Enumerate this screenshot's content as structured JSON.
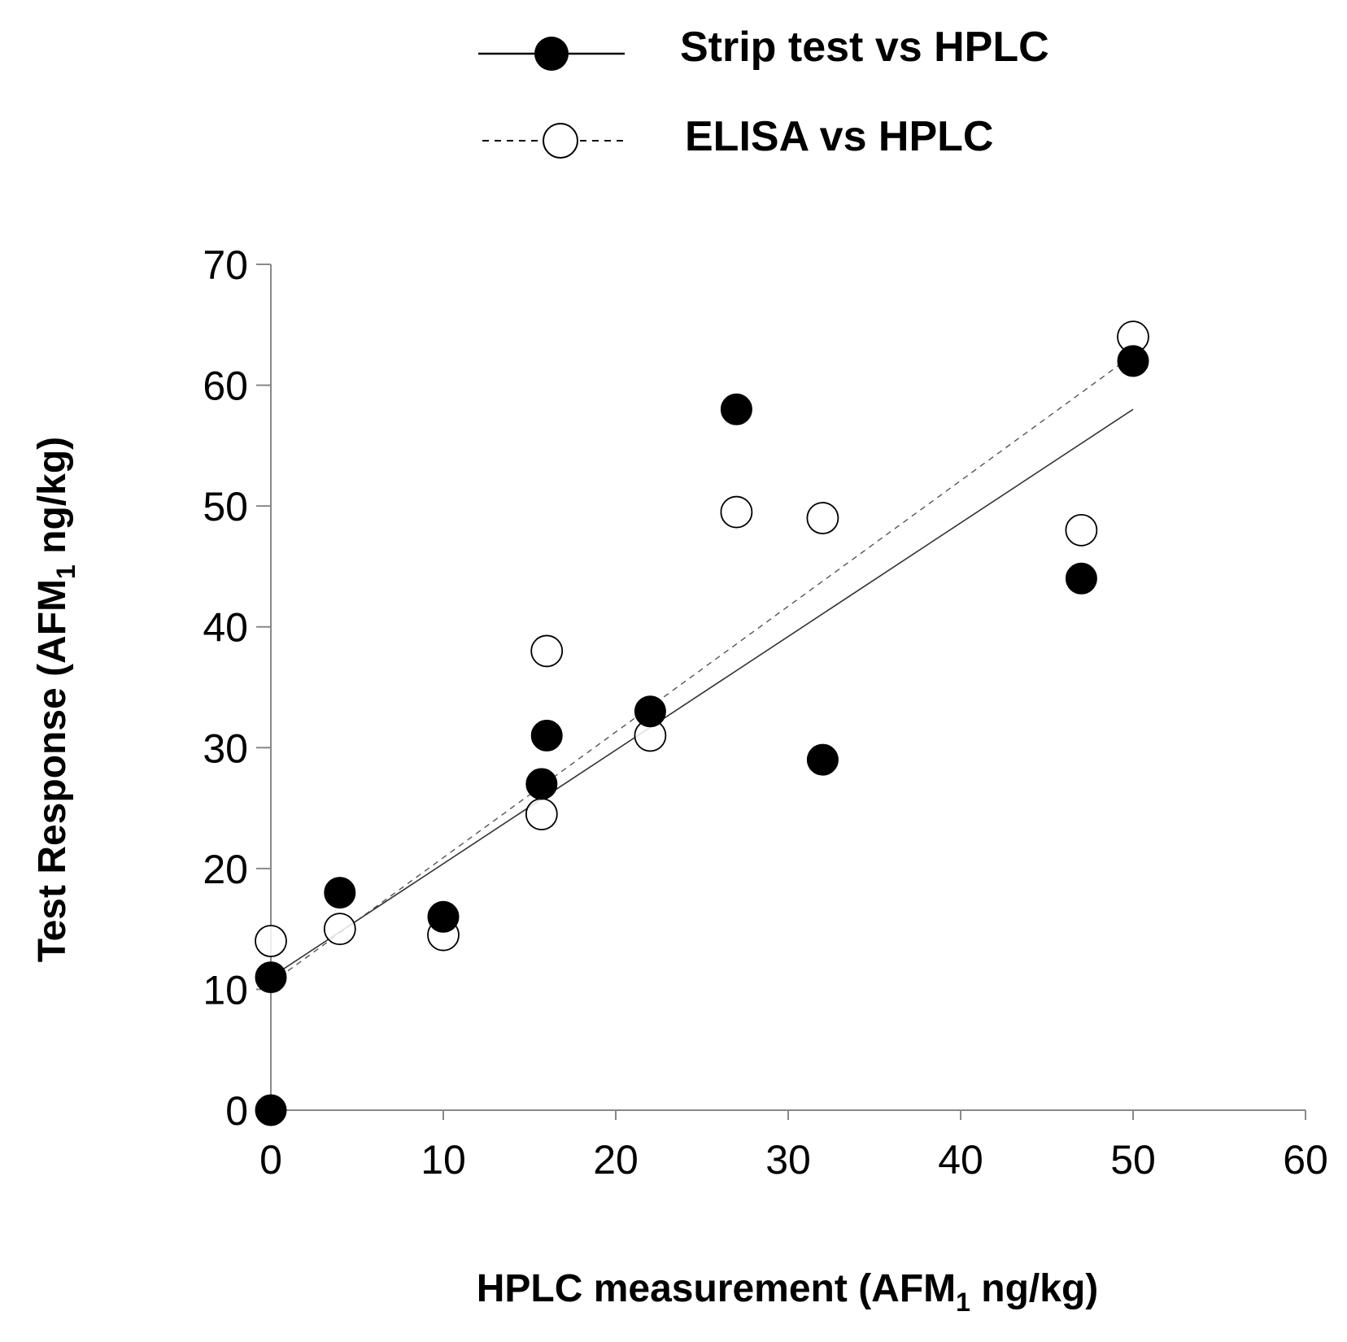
{
  "chart_data": {
    "type": "scatter",
    "title": "",
    "xlabel": "HPLC measurement (AFM1 ng/kg)",
    "xlabel_parts": {
      "pre": "HPLC measurement (AFM",
      "sub": "1",
      "post": " ng/kg)"
    },
    "ylabel": "Test Response (AFM1 ng/kg)",
    "ylabel_parts": {
      "pre": "Test Response (AFM",
      "sub": "1",
      "post": " ng/kg)"
    },
    "xlim": [
      0,
      60
    ],
    "ylim": [
      0,
      70
    ],
    "x_ticks": [
      0,
      10,
      20,
      30,
      40,
      50,
      60
    ],
    "y_ticks": [
      0,
      10,
      20,
      30,
      40,
      50,
      60,
      70
    ],
    "x_tick_labels": [
      "0",
      "10",
      "20",
      "30",
      "40",
      "50",
      "60"
    ],
    "y_tick_labels": [
      "0",
      "10",
      "20",
      "30",
      "40",
      "50",
      "60",
      "70"
    ],
    "grid": false,
    "legend_position": "top",
    "series": [
      {
        "name": "Strip test vs HPLC",
        "marker": "filled-circle",
        "line": "solid",
        "color": "#000000",
        "x": [
          0,
          0,
          4,
          10,
          15.7,
          16,
          22,
          27,
          32,
          47,
          50
        ],
        "y": [
          0,
          11,
          18,
          16,
          27,
          31,
          33,
          58,
          29,
          44,
          62
        ],
        "fit": {
          "x": [
            0,
            50
          ],
          "y": [
            11,
            58
          ]
        }
      },
      {
        "name": "ELISA vs HPLC",
        "marker": "open-circle",
        "line": "dashed",
        "color": "#000000",
        "x": [
          0,
          4,
          10,
          15.7,
          16,
          22,
          27,
          32,
          47,
          50
        ],
        "y": [
          14,
          15,
          14.5,
          24.5,
          38,
          31,
          49.5,
          49,
          48,
          64
        ],
        "fit": {
          "x": [
            0,
            50
          ],
          "y": [
            10.5,
            62.5
          ]
        }
      }
    ]
  }
}
